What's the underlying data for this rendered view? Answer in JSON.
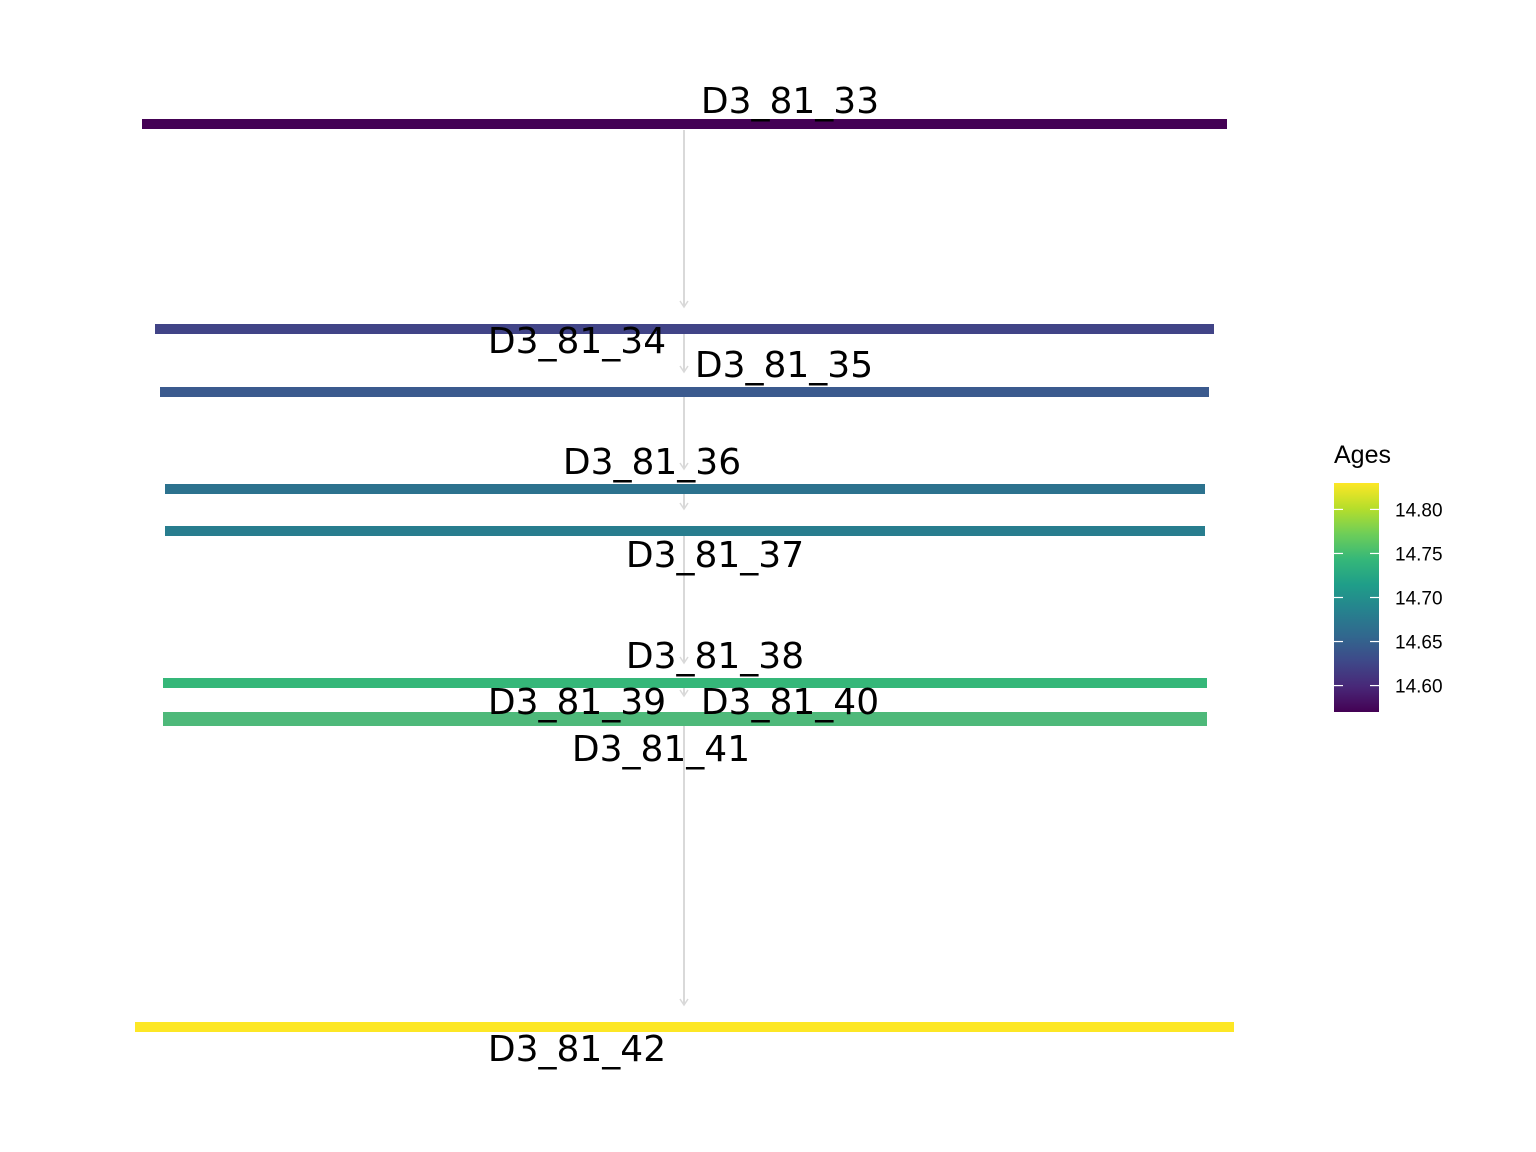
{
  "diagram": {
    "nodes": [
      {
        "label": "D3_81_33",
        "age": 14.57,
        "color": "#440154"
      },
      {
        "label": "D3_81_34",
        "age": 14.61,
        "color": "#414487"
      },
      {
        "label": "D3_81_35",
        "age": 14.62,
        "color": "#3b5a8e"
      },
      {
        "label": "D3_81_36",
        "age": 14.68,
        "color": "#2c728e"
      },
      {
        "label": "D3_81_37",
        "age": 14.69,
        "color": "#287d8e"
      },
      {
        "label": "D3_81_38",
        "age": 14.73,
        "color": "#35b779"
      },
      {
        "label": "D3_81_39",
        "age": 14.74,
        "color": "#47b97a"
      },
      {
        "label": "D3_81_40",
        "age": 14.74,
        "color": "#4cbb76"
      },
      {
        "label": "D3_81_41",
        "age": 14.74,
        "color": "#4eb97a"
      },
      {
        "label": "D3_81_42",
        "age": 14.83,
        "color": "#fde725"
      }
    ],
    "edges": [
      [
        "D3_81_33",
        "D3_81_34"
      ],
      [
        "D3_81_34",
        "D3_81_35"
      ],
      [
        "D3_81_35",
        "D3_81_36"
      ],
      [
        "D3_81_36",
        "D3_81_37"
      ],
      [
        "D3_81_37",
        "D3_81_38"
      ],
      [
        "D3_81_38",
        "D3_81_39"
      ],
      [
        "D3_81_39",
        "D3_81_40"
      ],
      [
        "D3_81_40",
        "D3_81_41"
      ],
      [
        "D3_81_41",
        "D3_81_42"
      ]
    ],
    "edge_color": "#d9d9d9"
  },
  "legend": {
    "title": "Ages",
    "ticks": [
      "14.80",
      "14.75",
      "14.70",
      "14.65",
      "14.60"
    ],
    "tick_values": [
      14.8,
      14.75,
      14.7,
      14.65,
      14.6
    ],
    "range": [
      14.57,
      14.83
    ],
    "colors": [
      "#440154",
      "#482878",
      "#3e4989",
      "#31688e",
      "#26828e",
      "#1f9e89",
      "#35b779",
      "#6ece58",
      "#b5de2b",
      "#fde725"
    ]
  }
}
